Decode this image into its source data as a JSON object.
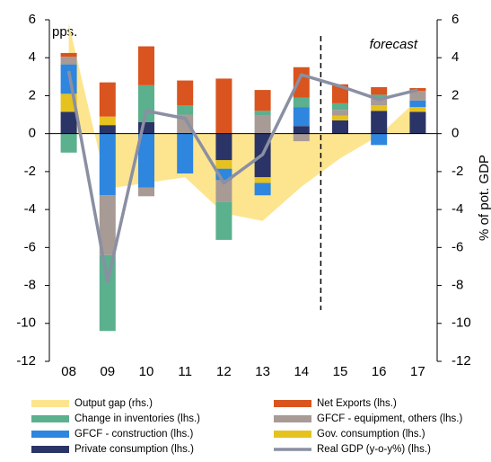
{
  "chart_data": {
    "type": "bar",
    "y_label": "pps.",
    "y2_label": "% of pot. GDP",
    "annotation": "forecast",
    "categories": [
      "08",
      "09",
      "10",
      "11",
      "12",
      "13",
      "14",
      "15",
      "16",
      "17"
    ],
    "ylim": [
      -12,
      6
    ],
    "yticks": [
      6,
      4,
      2,
      0,
      -2,
      -4,
      -6,
      -8,
      -10,
      -12
    ],
    "y2lim": [
      -12,
      6
    ],
    "y2ticks": [
      6,
      4,
      2,
      0,
      -2,
      -4,
      -6,
      -8,
      -10,
      -12
    ],
    "stacked": true,
    "series": [
      {
        "name": "Output gap (rhs.)",
        "type": "area",
        "axis": "y2",
        "color": "#fde58f",
        "values": [
          5.8,
          -2.9,
          -2.6,
          -2.3,
          -4.2,
          -4.6,
          -2.8,
          -1.3,
          -0.1,
          1.8
        ]
      },
      {
        "name": "Net Exports (lhs.)",
        "color": "#d9541e",
        "values": [
          0.2,
          1.8,
          2.05,
          1.3,
          2.9,
          1.1,
          1.6,
          1.0,
          0.4,
          0.15
        ]
      },
      {
        "name": "Change in inventories (lhs.)",
        "color": "#5bb08e",
        "values": [
          -1.0,
          -4.0,
          1.95,
          0.5,
          -2.0,
          0.25,
          0.5,
          0.35,
          0.2,
          0
        ]
      },
      {
        "name": "GFCF - equipment, others (lhs.)",
        "color": "#a89a94",
        "values": [
          0.4,
          -3.15,
          -0.45,
          1.0,
          -1.15,
          0.95,
          -0.4,
          0.3,
          0.35,
          0.5
        ]
      },
      {
        "name": "GFCF - construction (lhs.)",
        "color": "#2e86de",
        "values": [
          1.55,
          -3.25,
          -2.85,
          -2.1,
          -0.6,
          -0.65,
          1.0,
          0,
          -0.6,
          0.35
        ]
      },
      {
        "name": "Gov. consumption (lhs.)",
        "color": "#e6c21e",
        "values": [
          0.95,
          0.45,
          0,
          0,
          -0.45,
          -0.3,
          0,
          0.25,
          0.3,
          0.25
        ]
      },
      {
        "name": "Private consumption (lhs.)",
        "color": "#2b3466",
        "values": [
          1.15,
          0.45,
          0.6,
          0,
          -1.4,
          -2.3,
          0.4,
          0.7,
          1.2,
          1.15
        ]
      },
      {
        "name": "Real GDP (y-o-y%) (lhs.)",
        "type": "line",
        "color": "#8a8fa3",
        "values": [
          3.3,
          -7.8,
          1.2,
          0.8,
          -2.6,
          -1.1,
          3.1,
          2.5,
          1.8,
          2.3
        ]
      }
    ]
  }
}
